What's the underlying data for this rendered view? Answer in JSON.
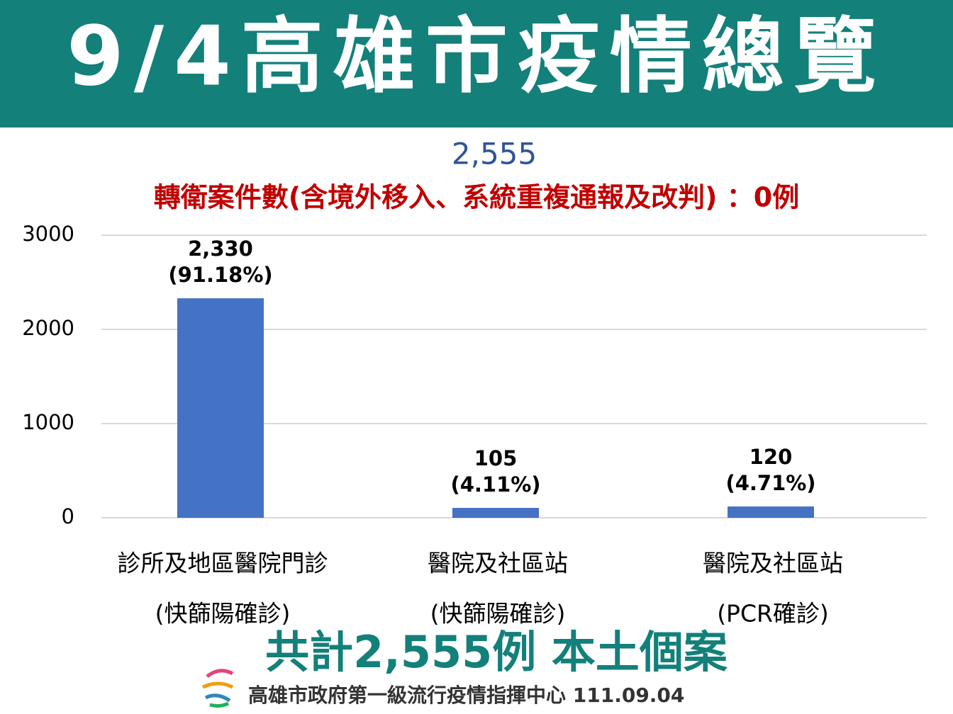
{
  "header": {
    "title": "9/4高雄市疫情總覽"
  },
  "chart_data": {
    "type": "bar",
    "title": "2,555",
    "subtitle": "轉衛案件數(含境外移入、系統重複通報及改判) ：0例",
    "categories": [
      [
        "診所及地區醫院門診",
        "(快篩陽確診)"
      ],
      [
        "醫院及社區站",
        "(快篩陽確診)"
      ],
      [
        "醫院及社區站",
        "(PCR確診)"
      ]
    ],
    "values": [
      2330,
      105,
      120
    ],
    "value_labels": [
      "2,330",
      "105",
      "120"
    ],
    "percent_labels": [
      "(91.18%)",
      "(4.11%)",
      "(4.71%)"
    ],
    "color": "#4472c4",
    "ylim": [
      0,
      3000
    ],
    "yticks": [
      0,
      1000,
      2000,
      3000
    ],
    "grid": true
  },
  "footer": {
    "summary": "共計2,555例 本土個案",
    "credit": "高雄市政府第一級流行疫情指揮中心 111.09.04"
  }
}
